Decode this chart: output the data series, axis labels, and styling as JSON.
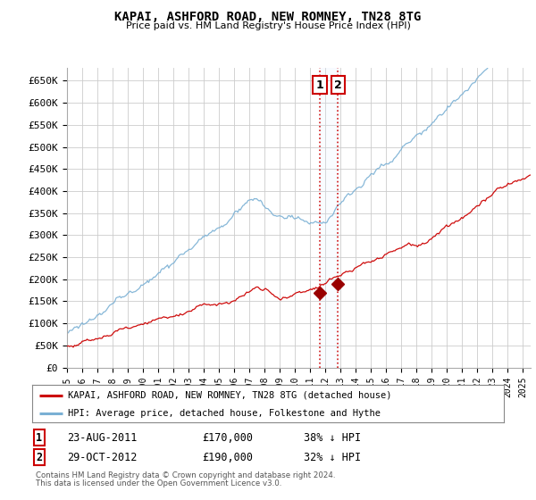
{
  "title": "KAPAI, ASHFORD ROAD, NEW ROMNEY, TN28 8TG",
  "subtitle": "Price paid vs. HM Land Registry's House Price Index (HPI)",
  "ylabel_ticks": [
    "£0",
    "£50K",
    "£100K",
    "£150K",
    "£200K",
    "£250K",
    "£300K",
    "£350K",
    "£400K",
    "£450K",
    "£500K",
    "£550K",
    "£600K",
    "£650K"
  ],
  "ytick_values": [
    0,
    50000,
    100000,
    150000,
    200000,
    250000,
    300000,
    350000,
    400000,
    450000,
    500000,
    550000,
    600000,
    650000
  ],
  "ylim": [
    0,
    680000
  ],
  "xlim_start": 1995.0,
  "xlim_end": 2025.5,
  "sale1_x": 2011.64,
  "sale1_y": 170000,
  "sale2_x": 2012.83,
  "sale2_y": 190000,
  "sale1_label": "1",
  "sale2_label": "2",
  "legend_line1": "KAPAI, ASHFORD ROAD, NEW ROMNEY, TN28 8TG (detached house)",
  "legend_line2": "HPI: Average price, detached house, Folkestone and Hythe",
  "table_row1": [
    "1",
    "23-AUG-2011",
    "£170,000",
    "38% ↓ HPI"
  ],
  "table_row2": [
    "2",
    "29-OCT-2012",
    "£190,000",
    "32% ↓ HPI"
  ],
  "footnote1": "Contains HM Land Registry data © Crown copyright and database right 2024.",
  "footnote2": "This data is licensed under the Open Government Licence v3.0.",
  "line_color_red": "#cc0000",
  "line_color_blue": "#7ab0d4",
  "marker_color_red": "#990000",
  "dashed_color": "#cc0000",
  "shade_color": "#ddeeff",
  "background_color": "#ffffff",
  "grid_color": "#cccccc"
}
